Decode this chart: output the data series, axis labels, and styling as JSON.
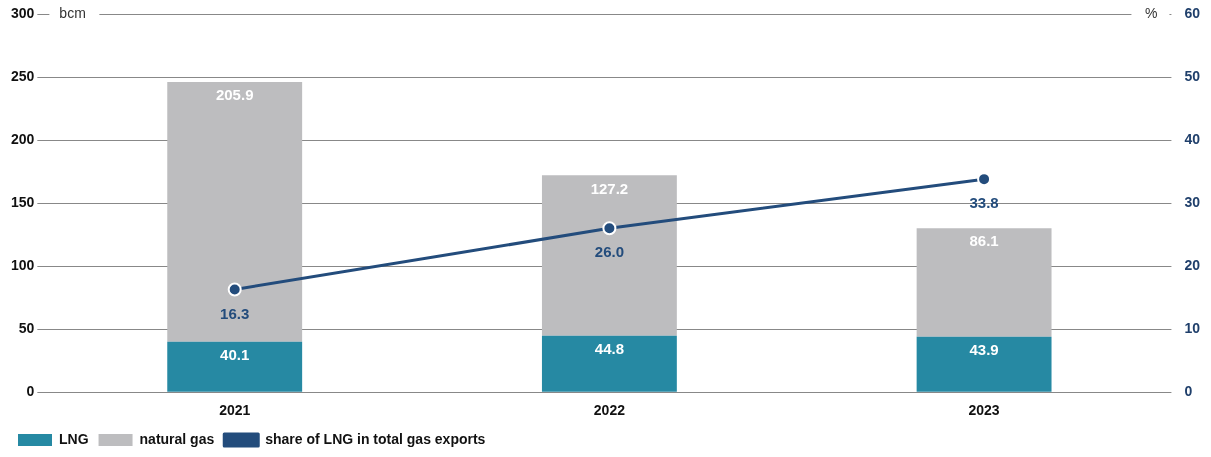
{
  "chart_data": {
    "type": "bar",
    "stacked": true,
    "categories": [
      "2021",
      "2022",
      "2023"
    ],
    "series": [
      {
        "name": "LNG",
        "color": "#2689a3",
        "values": [
          40.1,
          44.8,
          43.9
        ],
        "value_labels": [
          "40.1",
          "44.8",
          "43.9"
        ]
      },
      {
        "name": "natural gas",
        "color": "#bdbdbf",
        "values": [
          205.9,
          127.2,
          86.1
        ],
        "value_labels": [
          "205.9",
          "127.2",
          "86.1"
        ]
      },
      {
        "name": "share of LNG in total gas exports",
        "type": "line",
        "axis": "y2",
        "color": "#234c7c",
        "values": [
          16.3,
          26.0,
          33.8
        ],
        "value_labels": [
          "16.3",
          "26.0",
          "33.8"
        ],
        "marker": "circle"
      }
    ],
    "ylabel": "bcm",
    "y2label": "%",
    "ylim": [
      0,
      300
    ],
    "yticks": [
      0,
      50,
      100,
      150,
      200,
      250,
      300
    ],
    "y2lim": [
      0,
      60
    ],
    "y2ticks": [
      0,
      10,
      20,
      30,
      40,
      50,
      60
    ],
    "grid": "y",
    "legend": "bottom left"
  }
}
